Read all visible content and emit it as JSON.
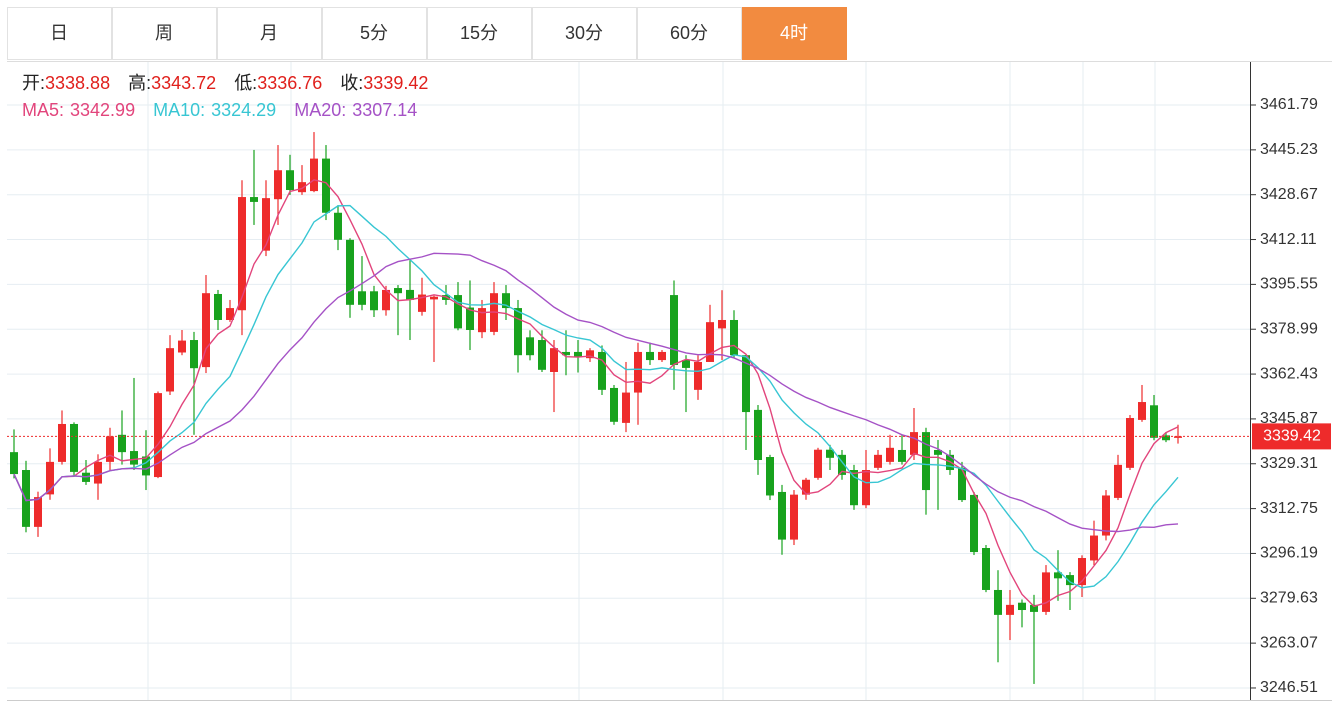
{
  "chart_data": {
    "type": "candlestick",
    "tabs": [
      "日",
      "周",
      "月",
      "5分",
      "15分",
      "30分",
      "60分",
      "4时"
    ],
    "active_tab": 7,
    "summary": [
      {
        "label": "开:",
        "value": 3338.88
      },
      {
        "label": "高:",
        "value": 3343.72
      },
      {
        "label": "低:",
        "value": 3336.76
      },
      {
        "label": "收:",
        "value": 3339.42
      }
    ],
    "ma": [
      {
        "name": "MA5:",
        "period": 5,
        "value": 3342.99,
        "color": "#e2457c"
      },
      {
        "name": "MA10:",
        "period": 10,
        "value": 3324.29,
        "color": "#38c6d3"
      },
      {
        "name": "MA20:",
        "period": 20,
        "value": 3307.14,
        "color": "#a552c6"
      }
    ],
    "up_color": "#ee2b2b",
    "down_color": "#18a21d",
    "ylim": [
      3242.07,
      3477.67
    ],
    "yticks": [
      3461.79,
      3445.23,
      3428.67,
      3412.11,
      3395.55,
      3378.99,
      3362.43,
      3345.87,
      3329.31,
      3312.75,
      3296.19,
      3279.63,
      3263.07,
      3246.51
    ],
    "grid": true,
    "ohlc": [
      [
        3333.6,
        3342,
        3323.9,
        3325.5
      ],
      [
        3327,
        3330.4,
        3304,
        3306
      ],
      [
        3306,
        3319,
        3302.3,
        3317
      ],
      [
        3318,
        3335,
        3316,
        3330
      ],
      [
        3330,
        3349,
        3329,
        3344
      ],
      [
        3344,
        3344.6,
        3325,
        3326.3
      ],
      [
        3326,
        3330.7,
        3321.5,
        3322.6
      ],
      [
        3322,
        3332.8,
        3316,
        3330
      ],
      [
        3330,
        3342.6,
        3327,
        3339.4
      ],
      [
        3340,
        3349,
        3329,
        3333.6
      ],
      [
        3334,
        3361,
        3327,
        3329
      ],
      [
        3332,
        3341.7,
        3319.6,
        3325
      ],
      [
        3324.4,
        3356,
        3324,
        3355.4
      ],
      [
        3356,
        3376.8,
        3354.7,
        3372
      ],
      [
        3370.4,
        3378.7,
        3369.4,
        3374.8
      ],
      [
        3375,
        3378,
        3340,
        3364.6
      ],
      [
        3365,
        3399,
        3362.8,
        3392.3
      ],
      [
        3392,
        3393.5,
        3378.7,
        3382.4
      ],
      [
        3382.4,
        3389.8,
        3381.7,
        3386.8
      ],
      [
        3386,
        3434,
        3376.8,
        3427.8
      ],
      [
        3427.8,
        3445.2,
        3417.5,
        3426
      ],
      [
        3408,
        3434,
        3406,
        3427.4
      ],
      [
        3427,
        3447,
        3417.5,
        3437.7
      ],
      [
        3437.7,
        3443.4,
        3428.6,
        3430.4
      ],
      [
        3429.6,
        3439.6,
        3428.6,
        3433.3
      ],
      [
        3430,
        3451.8,
        3429.6,
        3442
      ],
      [
        3442,
        3447,
        3419.3,
        3422
      ],
      [
        3422,
        3424.8,
        3408.2,
        3412
      ],
      [
        3412,
        3412.6,
        3383.2,
        3388
      ],
      [
        3393,
        3406,
        3386,
        3388
      ],
      [
        3393,
        3395,
        3383.5,
        3386
      ],
      [
        3386,
        3395,
        3384,
        3393.5
      ],
      [
        3394.2,
        3395.3,
        3376.8,
        3392.3
      ],
      [
        3393.5,
        3404.5,
        3375,
        3389.8
      ],
      [
        3385.4,
        3398,
        3384,
        3391.8
      ],
      [
        3390,
        3391.4,
        3366.9,
        3391
      ],
      [
        3391.6,
        3395.3,
        3388,
        3389.8
      ],
      [
        3391.6,
        3396.4,
        3378.6,
        3379.3
      ],
      [
        3387,
        3397,
        3371.3,
        3378.7
      ],
      [
        3377.9,
        3389.8,
        3375.7,
        3386.8
      ],
      [
        3378,
        3396.4,
        3376.8,
        3392.3
      ],
      [
        3392.3,
        3395.3,
        3382.4,
        3386.8
      ],
      [
        3386.8,
        3389.8,
        3363,
        3369.4
      ],
      [
        3376,
        3378.6,
        3367.5,
        3369.4
      ],
      [
        3375,
        3378.6,
        3363.2,
        3364
      ],
      [
        3363.2,
        3375,
        3348.4,
        3372
      ],
      [
        3370.6,
        3378.6,
        3362,
        3369.4
      ],
      [
        3370.6,
        3375,
        3363,
        3368.7
      ],
      [
        3368.3,
        3372,
        3366.9,
        3371.2
      ],
      [
        3370.6,
        3373,
        3354.7,
        3356.6
      ],
      [
        3357.3,
        3358.4,
        3343.7,
        3344.8
      ],
      [
        3344.4,
        3366.9,
        3341,
        3355.6
      ],
      [
        3355.6,
        3374,
        3343.7,
        3370.6
      ],
      [
        3370.6,
        3374,
        3365.8,
        3367.6
      ],
      [
        3367.6,
        3371.3,
        3366.9,
        3370.6
      ],
      [
        3391.6,
        3397,
        3356.6,
        3365.8
      ],
      [
        3367.6,
        3369.4,
        3348.4,
        3364.7
      ],
      [
        3356.6,
        3369.4,
        3352.9,
        3366.9
      ],
      [
        3366.9,
        3388,
        3366.9,
        3381.6
      ],
      [
        3379.3,
        3393.4,
        3367.6,
        3382.4
      ],
      [
        3382.4,
        3386,
        3368.3,
        3369.4
      ],
      [
        3369.4,
        3369.4,
        3334.4,
        3348.4
      ],
      [
        3349.2,
        3351,
        3325.2,
        3330.7
      ],
      [
        3331.8,
        3332.6,
        3315.9,
        3317.6
      ],
      [
        3318.9,
        3321.5,
        3295.7,
        3301.3
      ],
      [
        3301.3,
        3319.6,
        3299.3,
        3317.9
      ],
      [
        3317.9,
        3324.1,
        3316,
        3323.4
      ],
      [
        3324.1,
        3335.2,
        3323.4,
        3334.5
      ],
      [
        3334.5,
        3336.3,
        3327,
        3331.5
      ],
      [
        3332.6,
        3334.4,
        3323.4,
        3325.2
      ],
      [
        3327,
        3328.9,
        3312.3,
        3314
      ],
      [
        3314,
        3334.4,
        3312.9,
        3327
      ],
      [
        3327.8,
        3334.4,
        3327,
        3332.6
      ],
      [
        3330,
        3340,
        3329,
        3335.2
      ],
      [
        3334.4,
        3340,
        3329,
        3330
      ],
      [
        3332.6,
        3349.9,
        3330.7,
        3341
      ],
      [
        3341,
        3342.6,
        3310.5,
        3319.6
      ],
      [
        3334.4,
        3338.1,
        3312.3,
        3332.6
      ],
      [
        3332.6,
        3334.4,
        3325.2,
        3327
      ],
      [
        3327.8,
        3330,
        3315.2,
        3315.9
      ],
      [
        3317.8,
        3318.9,
        3295.6,
        3296.7
      ],
      [
        3298.2,
        3299.3,
        3281.9,
        3282.7
      ],
      [
        3282.7,
        3290,
        3256,
        3273.5
      ],
      [
        3273.5,
        3282.7,
        3264.2,
        3277.2
      ],
      [
        3278,
        3279.2,
        3268.9,
        3275.3
      ],
      [
        3277.2,
        3280.9,
        3248,
        3274.6
      ],
      [
        3274.6,
        3291.9,
        3273.5,
        3289.2
      ],
      [
        3289.2,
        3297.4,
        3278.7,
        3287
      ],
      [
        3288.2,
        3289.3,
        3275.3,
        3284.5
      ],
      [
        3284.5,
        3295.5,
        3280.1,
        3294.5
      ],
      [
        3293.6,
        3308.3,
        3291.9,
        3302.8
      ],
      [
        3302.8,
        3319.6,
        3301,
        3317.6
      ],
      [
        3316.7,
        3332.6,
        3315.9,
        3328.9
      ],
      [
        3327.8,
        3347.3,
        3327,
        3346.2
      ],
      [
        3345.5,
        3358.4,
        3344.8,
        3352.1
      ],
      [
        3350.9,
        3354.7,
        3338,
        3338.9
      ],
      [
        3339.8,
        3341,
        3337.3,
        3338
      ],
      [
        3338.88,
        3343.72,
        3336.76,
        3339.42
      ]
    ]
  }
}
